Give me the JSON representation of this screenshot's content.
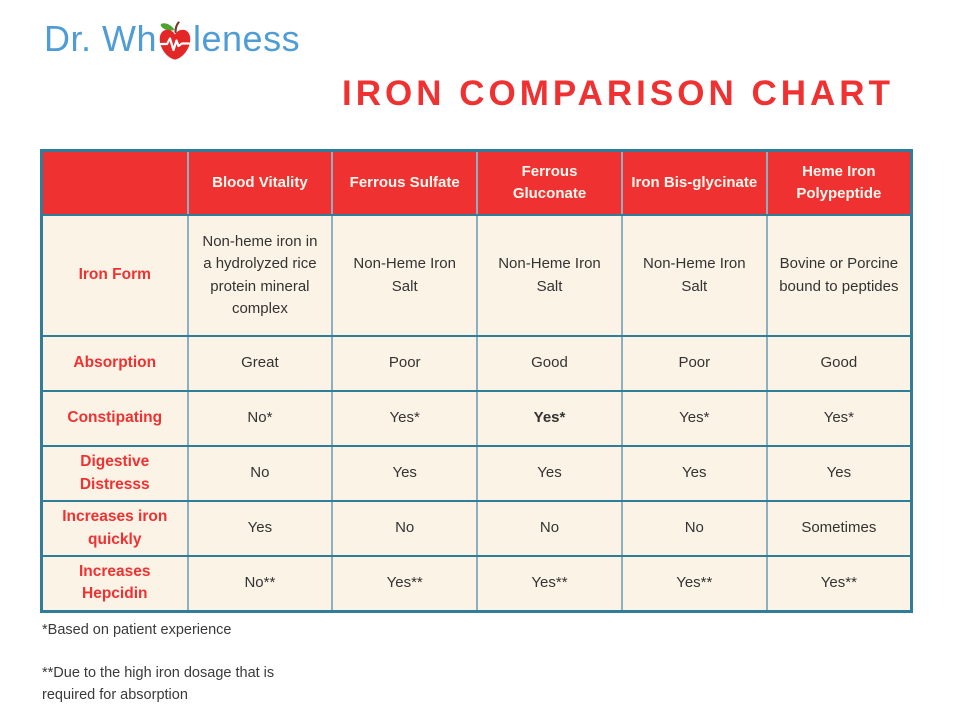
{
  "logo": {
    "text_before": "Dr. Wh",
    "text_after": "leness",
    "icon": "apple-heartbeat-icon"
  },
  "chart_data": {
    "type": "table",
    "title": "IRON COMPARISON CHART",
    "columns": [
      "Blood Vitality",
      "Ferrous Sulfate",
      "Ferrous Gluconate",
      "Iron Bis-glycinate",
      "Heme Iron Polypeptide"
    ],
    "rows": [
      {
        "label": "Iron Form",
        "values": [
          "Non-heme iron in a hydrolyzed rice protein mineral complex",
          "Non-Heme Iron Salt",
          "Non-Heme Iron Salt",
          "Non-Heme Iron Salt",
          "Bovine or Porcine bound to peptides"
        ]
      },
      {
        "label": "Absorption",
        "values": [
          "Great",
          "Poor",
          "Good",
          "Poor",
          "Good"
        ]
      },
      {
        "label": "Constipating",
        "values": [
          "No*",
          "Yes*",
          "Yes*",
          "Yes*",
          "Yes*"
        ],
        "bold": [
          false,
          false,
          true,
          false,
          false
        ]
      },
      {
        "label": "Digestive Distresss",
        "values": [
          "No",
          "Yes",
          "Yes",
          "Yes",
          "Yes"
        ]
      },
      {
        "label": "Increases iron quickly",
        "values": [
          "Yes",
          "No",
          "No",
          "No",
          "Sometimes"
        ]
      },
      {
        "label": "Increases Hepcidin",
        "values": [
          "No**",
          "Yes**",
          "Yes**",
          "Yes**",
          "Yes**"
        ]
      }
    ]
  },
  "footnotes": [
    "*Based on patient experience",
    "**Due to the high iron dosage that is required for absorption"
  ],
  "colors": {
    "accent_red": "#f03131",
    "cell_cream": "#fcf3e7",
    "border_teal": "#2f7d98",
    "border_steel": "#8ab0c2",
    "logo_blue": "#4f9dd4",
    "text_dark": "#333333"
  }
}
